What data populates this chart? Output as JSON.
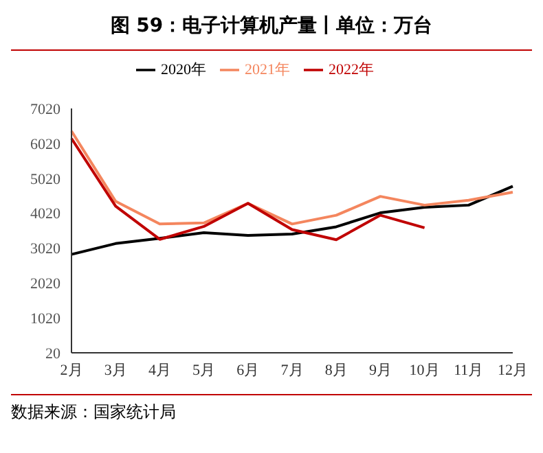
{
  "chart_data": {
    "type": "line",
    "title": "图 59：电子计算机产量丨单位：万台",
    "categories": [
      "2月",
      "3月",
      "4月",
      "5月",
      "6月",
      "7月",
      "8月",
      "9月",
      "10月",
      "11月",
      "12月"
    ],
    "series": [
      {
        "name": "2020年",
        "color": "#000000",
        "values": [
          2840,
          3150,
          3300,
          3460,
          3380,
          3420,
          3630,
          4030,
          4190,
          4250,
          4790
        ]
      },
      {
        "name": "2021年",
        "color": "#f4865e",
        "values": [
          6370,
          4360,
          3710,
          3740,
          4300,
          3710,
          3960,
          4500,
          4250,
          4390,
          4620
        ]
      },
      {
        "name": "2022年",
        "color": "#c00000",
        "values": [
          6160,
          4220,
          3270,
          3640,
          4300,
          3550,
          3260,
          3960,
          3600,
          null,
          null
        ]
      }
    ],
    "ylim": [
      20,
      7020
    ],
    "yticks": [
      20,
      1020,
      2020,
      3020,
      4020,
      5020,
      6020,
      7020
    ],
    "grid": false,
    "legend": "top",
    "marker": "none",
    "line_style": "solid",
    "annotations": [
      "数据来源：国家统计局"
    ]
  }
}
